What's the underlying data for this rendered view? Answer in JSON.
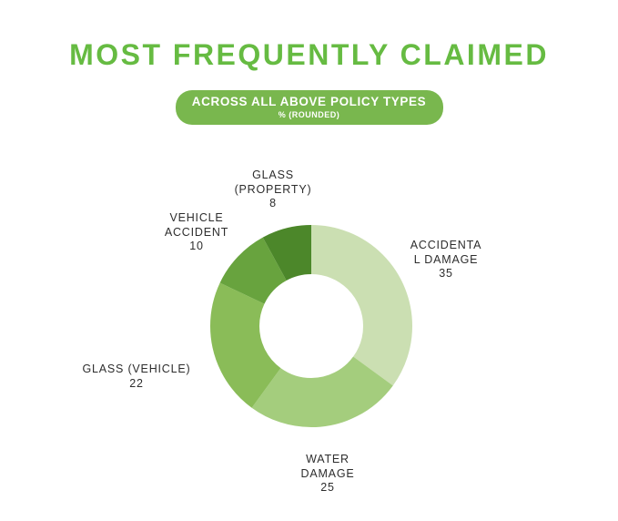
{
  "header": {
    "title": "MOST FREQUENTLY CLAIMED",
    "title_color": "#66bb42"
  },
  "badge": {
    "line1": "ACROSS ALL ABOVE POLICY TYPES",
    "line2": "% (ROUNDED)",
    "background": "#79b74e",
    "text_color": "#ffffff"
  },
  "chart_data": {
    "type": "pie",
    "subtype": "donut",
    "title": "MOST FREQUENTLY CLAIMED",
    "subtitle": "ACROSS ALL ABOVE POLICY TYPES",
    "units": "% (ROUNDED)",
    "categories": [
      "ACCIDENTAL DAMAGE",
      "WATER DAMAGE",
      "GLASS (VEHICLE)",
      "VEHICLE ACCIDENT",
      "GLASS (PROPERTY)"
    ],
    "values": [
      35,
      25,
      22,
      10,
      8
    ],
    "colors": [
      "#cbdfb2",
      "#a4cd7d",
      "#8abc58",
      "#68a33e",
      "#4c872a"
    ],
    "start_angle_deg": 0,
    "direction": "clockwise",
    "inner_radius_ratio": 0.51,
    "legend": "none",
    "labels_position": "outside",
    "labels": [
      {
        "lines": [
          "ACCIDENTA",
          "L DAMAGE"
        ]
      },
      {
        "lines": [
          "WATER",
          "DAMAGE"
        ]
      },
      {
        "lines": [
          "GLASS (VEHICLE)"
        ]
      },
      {
        "lines": [
          "VEHICLE",
          "ACCIDENT"
        ]
      },
      {
        "lines": [
          "GLASS",
          "(PROPERTY)"
        ]
      }
    ]
  }
}
